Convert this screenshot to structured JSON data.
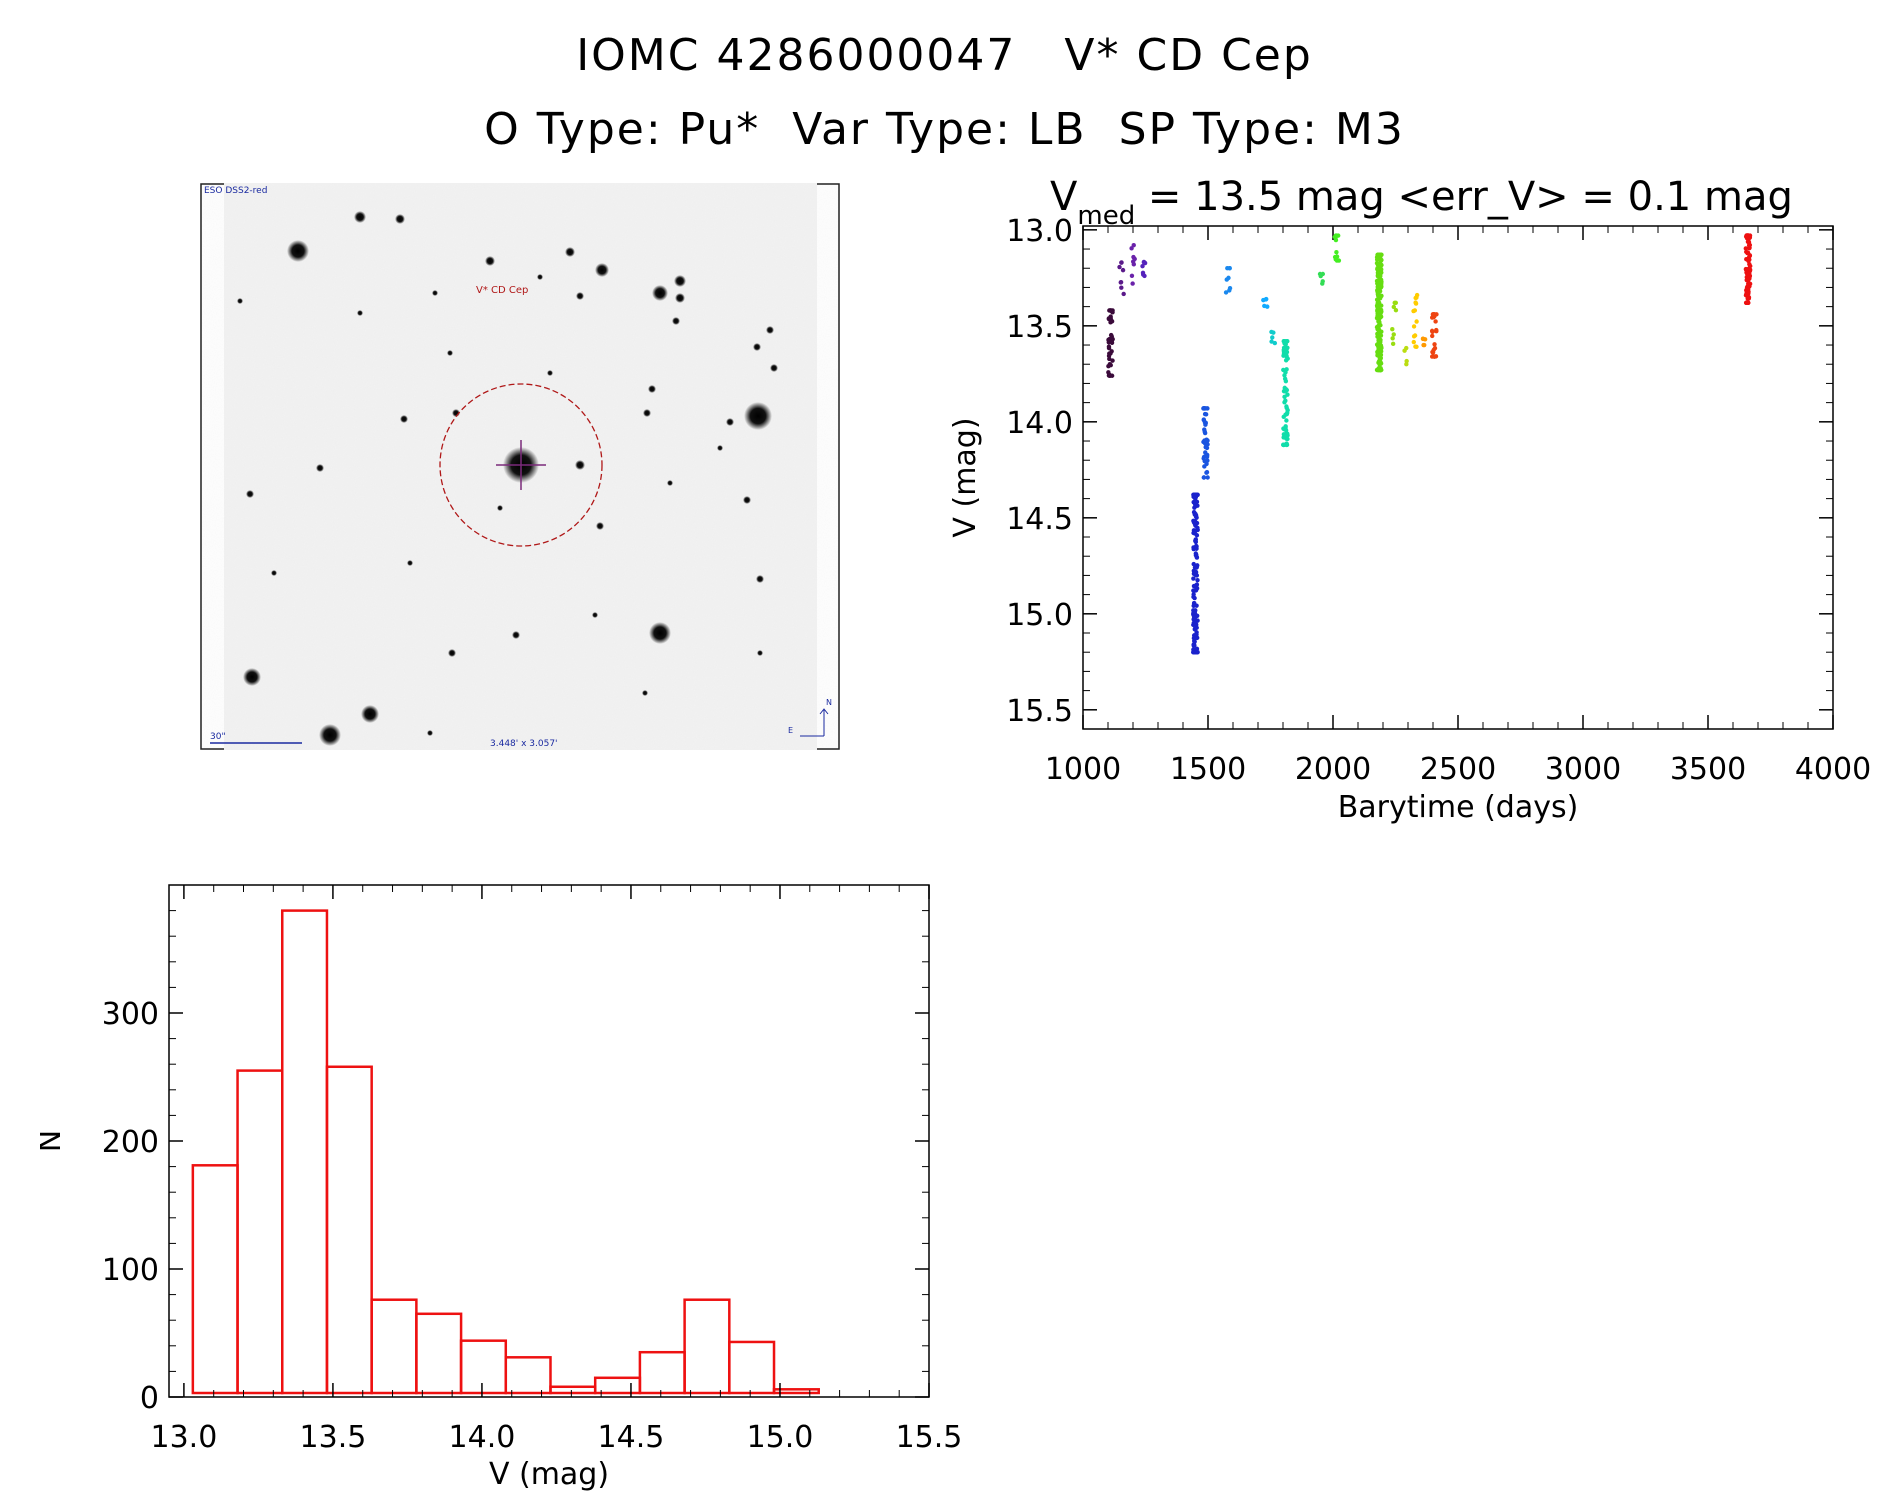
{
  "titles": {
    "line1_id": "IOMC 4286000047",
    "line1_name": "V* CD Cep",
    "line2_otype": "O Type: Pu*",
    "line2_vartype": "Var Type: LB",
    "line2_sptype": "SP Type: M3"
  },
  "finder_image": {
    "survey_label": "ESO DSS2-red",
    "target_label": "V* CD Cep",
    "scale_label": "30\"",
    "size_label": "3.448' x 3.057'",
    "north_label": "N",
    "east_label": "E"
  },
  "colors": {
    "histogram": "#ee1111",
    "finder_circle": "#b01818",
    "finder_text": "#1a2aa0"
  },
  "chart_data": [
    {
      "type": "scatter",
      "title_prefix": "V",
      "title_subscript": "med",
      "title_rest": " = 13.5 mag <err_V> = 0.1 mag",
      "xlabel": "Barytime (days)",
      "ylabel": "V (mag)",
      "xlim": [
        1000,
        4000
      ],
      "ylim": [
        15.6,
        12.98
      ],
      "y_inverted": true,
      "xticks": [
        1000,
        1500,
        2000,
        2500,
        3000,
        3500,
        4000
      ],
      "yticks": [
        "13.0",
        "13.5",
        "14.0",
        "14.5",
        "15.0",
        "15.5"
      ],
      "groups": [
        {
          "x": 1110,
          "y_min": 13.42,
          "y_max": 13.76,
          "n": 40,
          "color": "#3a0a3a"
        },
        {
          "x": 1155,
          "y_min": 13.17,
          "y_max": 13.38,
          "n": 8,
          "color": "#5a1a8a"
        },
        {
          "x": 1200,
          "y_min": 13.08,
          "y_max": 13.28,
          "n": 8,
          "color": "#6a22aa"
        },
        {
          "x": 1240,
          "y_min": 13.12,
          "y_max": 13.24,
          "n": 8,
          "color": "#5522bb"
        },
        {
          "x": 1450,
          "y_min": 14.38,
          "y_max": 15.2,
          "n": 160,
          "color": "#1a22cc"
        },
        {
          "x": 1490,
          "y_min": 13.93,
          "y_max": 14.29,
          "n": 40,
          "color": "#1a55e0"
        },
        {
          "x": 1580,
          "y_min": 13.2,
          "y_max": 13.33,
          "n": 8,
          "color": "#1a88ee"
        },
        {
          "x": 1730,
          "y_min": 13.33,
          "y_max": 13.4,
          "n": 5,
          "color": "#11aaff"
        },
        {
          "x": 1760,
          "y_min": 13.53,
          "y_max": 13.59,
          "n": 5,
          "color": "#11cccc"
        },
        {
          "x": 1810,
          "y_min": 13.58,
          "y_max": 14.12,
          "n": 70,
          "color": "#11ddaa"
        },
        {
          "x": 1955,
          "y_min": 13.23,
          "y_max": 13.28,
          "n": 5,
          "color": "#33dd55"
        },
        {
          "x": 2015,
          "y_min": 13.03,
          "y_max": 13.16,
          "n": 12,
          "color": "#44ee22"
        },
        {
          "x": 2185,
          "y_min": 13.13,
          "y_max": 13.73,
          "n": 220,
          "color": "#66dd11"
        },
        {
          "x": 2245,
          "y_min": 13.38,
          "y_max": 13.6,
          "n": 8,
          "color": "#99dd11"
        },
        {
          "x": 2290,
          "y_min": 13.6,
          "y_max": 13.7,
          "n": 4,
          "color": "#bbdd11"
        },
        {
          "x": 2330,
          "y_min": 13.33,
          "y_max": 13.62,
          "n": 14,
          "color": "#ffcc00"
        },
        {
          "x": 2360,
          "y_min": 13.53,
          "y_max": 13.6,
          "n": 5,
          "color": "#ff9900"
        },
        {
          "x": 2405,
          "y_min": 13.44,
          "y_max": 13.66,
          "n": 25,
          "color": "#ee4411"
        },
        {
          "x": 3660,
          "y_min": 13.03,
          "y_max": 13.38,
          "n": 90,
          "color": "#ee1111"
        }
      ]
    },
    {
      "type": "histogram",
      "xlabel": "V (mag)",
      "ylabel": "N",
      "xlim": [
        12.95,
        15.5
      ],
      "ylim": [
        0,
        400
      ],
      "xticks": [
        "13.0",
        "13.5",
        "14.0",
        "14.5",
        "15.0",
        "15.5"
      ],
      "yticks": [
        "0",
        "100",
        "200",
        "300"
      ],
      "bin_start": 13.03,
      "bin_width": 0.15,
      "values": [
        181,
        255,
        380,
        258,
        76,
        65,
        44,
        31,
        8,
        15,
        35,
        76,
        43,
        6,
        2
      ]
    }
  ]
}
